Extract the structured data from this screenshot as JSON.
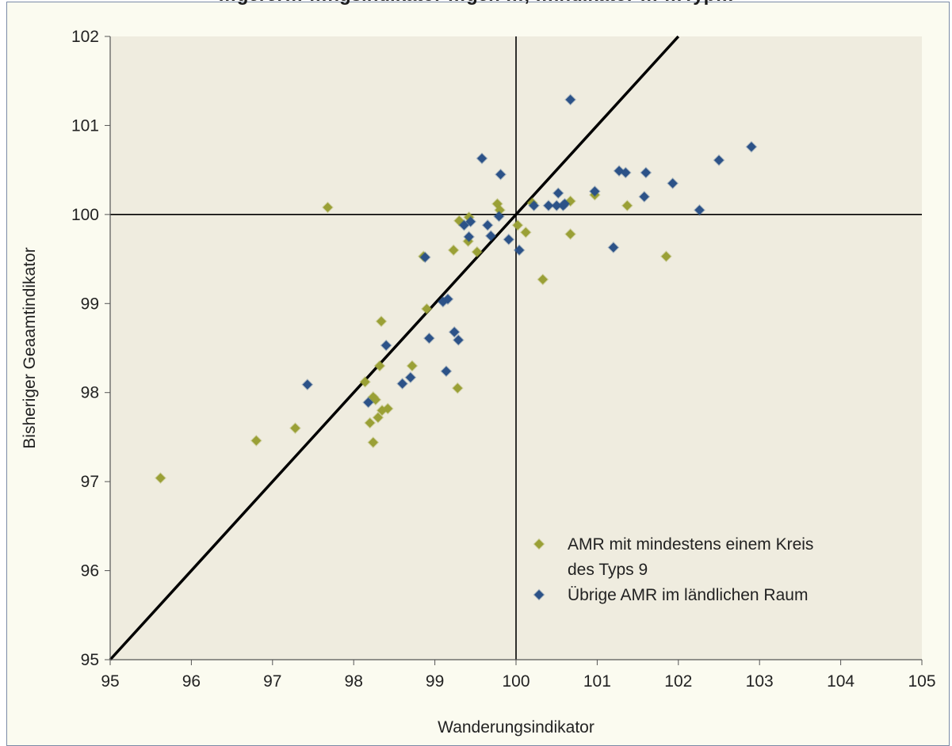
{
  "chart_data": {
    "type": "scatter",
    "title": "…gerer… …ngsindikator …gen …, …indikator … …Typ…",
    "xlabel": "Wanderungsindikator",
    "ylabel": "Bisheriger Geaamtindikator",
    "xlim": [
      95,
      105
    ],
    "ylim": [
      95,
      102
    ],
    "x_ticks": [
      "95",
      "96",
      "97",
      "98",
      "99",
      "100",
      "101",
      "102",
      "103",
      "104",
      "105"
    ],
    "y_ticks": [
      "95",
      "96",
      "97",
      "98",
      "99",
      "100",
      "101",
      "102"
    ],
    "grid": false,
    "legend_position": "bottom-right",
    "reference_lines": [
      {
        "type": "diagonal",
        "from": [
          95,
          95
        ],
        "to": [
          102,
          102
        ]
      },
      {
        "type": "vertical",
        "x": 100
      },
      {
        "type": "horizontal",
        "y": 100
      }
    ],
    "colors": {
      "plot_background": "#efecdf",
      "series_1": "#9aa036",
      "series_2": "#2c5288"
    },
    "series": [
      {
        "name": "AMR mit  mindestens einem Kreis des Typs 9",
        "legend_lines": [
          "AMR mit  mindestens einem Kreis",
          "des Typs 9"
        ],
        "marker": "diamond",
        "points": [
          [
            95.62,
            97.04
          ],
          [
            96.8,
            97.46
          ],
          [
            97.28,
            97.6
          ],
          [
            97.68,
            100.08
          ],
          [
            98.14,
            98.12
          ],
          [
            98.2,
            97.66
          ],
          [
            98.24,
            97.95
          ],
          [
            98.27,
            97.92
          ],
          [
            98.24,
            97.44
          ],
          [
            98.3,
            97.72
          ],
          [
            98.32,
            98.3
          ],
          [
            98.34,
            98.8
          ],
          [
            98.35,
            97.8
          ],
          [
            98.42,
            97.82
          ],
          [
            98.72,
            98.3
          ],
          [
            98.86,
            99.53
          ],
          [
            98.9,
            98.94
          ],
          [
            99.23,
            99.6
          ],
          [
            99.28,
            98.05
          ],
          [
            99.3,
            99.93
          ],
          [
            99.41,
            99.7
          ],
          [
            99.42,
            99.97
          ],
          [
            99.52,
            99.58
          ],
          [
            99.77,
            100.12
          ],
          [
            99.8,
            100.05
          ],
          [
            100.02,
            99.88
          ],
          [
            100.12,
            99.8
          ],
          [
            100.2,
            100.13
          ],
          [
            100.33,
            99.27
          ],
          [
            100.67,
            100.15
          ],
          [
            100.67,
            99.78
          ],
          [
            100.97,
            100.22
          ],
          [
            101.37,
            100.1
          ],
          [
            101.85,
            99.53
          ]
        ]
      },
      {
        "name": "Übrige AMR im ländlichen Raum",
        "legend_lines": [
          "Übrige AMR im ländlichen Raum"
        ],
        "marker": "diamond",
        "points": [
          [
            97.43,
            98.09
          ],
          [
            98.18,
            97.89
          ],
          [
            98.4,
            98.53
          ],
          [
            98.6,
            98.1
          ],
          [
            98.7,
            98.17
          ],
          [
            98.88,
            99.52
          ],
          [
            98.93,
            98.61
          ],
          [
            99.1,
            99.02
          ],
          [
            99.16,
            99.05
          ],
          [
            99.14,
            98.24
          ],
          [
            99.24,
            98.68
          ],
          [
            99.29,
            98.59
          ],
          [
            99.36,
            99.88
          ],
          [
            99.42,
            99.75
          ],
          [
            99.44,
            99.92
          ],
          [
            99.58,
            100.63
          ],
          [
            99.65,
            99.88
          ],
          [
            99.69,
            99.76
          ],
          [
            99.79,
            99.98
          ],
          [
            99.81,
            100.45
          ],
          [
            99.91,
            99.72
          ],
          [
            100.04,
            99.6
          ],
          [
            100.22,
            100.1
          ],
          [
            100.4,
            100.1
          ],
          [
            100.5,
            100.1
          ],
          [
            100.52,
            100.24
          ],
          [
            100.58,
            100.1
          ],
          [
            100.6,
            100.12
          ],
          [
            100.67,
            101.29
          ],
          [
            100.97,
            100.26
          ],
          [
            101.2,
            99.63
          ],
          [
            101.27,
            100.49
          ],
          [
            101.35,
            100.47
          ],
          [
            101.58,
            100.2
          ],
          [
            101.6,
            100.47
          ],
          [
            101.93,
            100.35
          ],
          [
            102.26,
            100.05
          ],
          [
            102.5,
            100.61
          ],
          [
            102.9,
            100.76
          ]
        ]
      }
    ]
  }
}
